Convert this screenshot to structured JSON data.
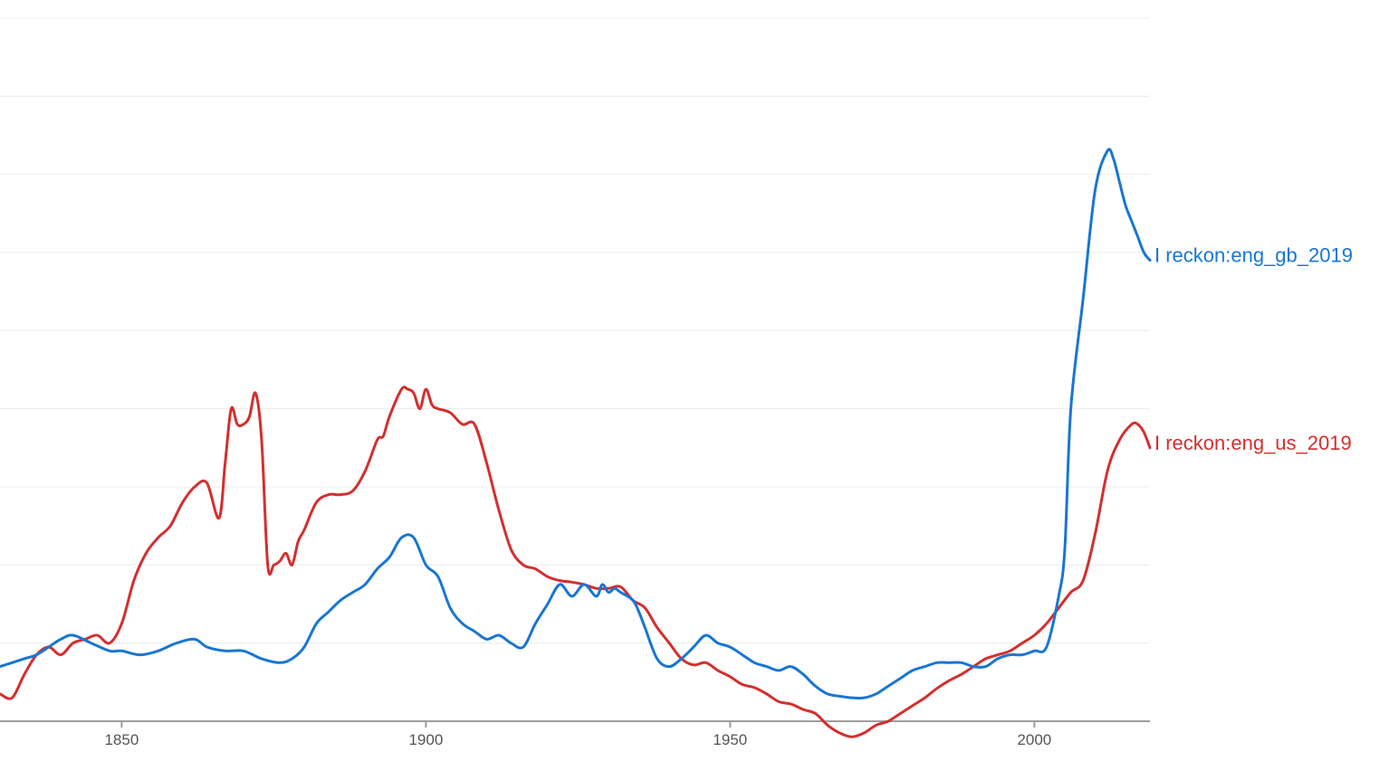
{
  "chart_data": {
    "type": "line",
    "title": "",
    "xlabel": "",
    "ylabel": "",
    "xlim": [
      1830,
      2019
    ],
    "ylim": [
      0,
      9
    ],
    "y_tick_labels_shown": false,
    "grid": "horizontal",
    "legend": "series labels at right end of lines",
    "x_ticks": [
      1850,
      1900,
      1950,
      2000
    ],
    "x_tick_labels": [
      "1850",
      "1900",
      "1950",
      "2000"
    ],
    "series": [
      {
        "name": "I reckon:eng_gb_2019",
        "color": "#1976d2",
        "x": [
          1830,
          1832,
          1834,
          1836,
          1838,
          1840,
          1842,
          1845,
          1848,
          1850,
          1853,
          1856,
          1859,
          1862,
          1864,
          1867,
          1870,
          1873,
          1876,
          1878,
          1880,
          1882,
          1884,
          1886,
          1888,
          1890,
          1892,
          1894,
          1896,
          1898,
          1900,
          1902,
          1904,
          1906,
          1908,
          1910,
          1912,
          1914,
          1916,
          1918,
          1920,
          1922,
          1924,
          1926,
          1928,
          1929,
          1930,
          1931,
          1932,
          1934,
          1935,
          1936,
          1938,
          1940,
          1942,
          1944,
          1946,
          1948,
          1950,
          1952,
          1954,
          1956,
          1958,
          1960,
          1962,
          1964,
          1966,
          1968,
          1970,
          1972,
          1974,
          1976,
          1978,
          1980,
          1982,
          1984,
          1986,
          1988,
          1990,
          1992,
          1994,
          1996,
          1998,
          2000,
          2002,
          2004,
          2005,
          2006,
          2008,
          2010,
          2012,
          2013,
          2014,
          2015,
          2016,
          2017,
          2018,
          2019
        ],
        "values": [
          0.7,
          0.75,
          0.8,
          0.85,
          0.95,
          1.05,
          1.1,
          1.0,
          0.9,
          0.9,
          0.85,
          0.9,
          1.0,
          1.05,
          0.95,
          0.9,
          0.9,
          0.8,
          0.75,
          0.8,
          0.95,
          1.25,
          1.4,
          1.55,
          1.65,
          1.75,
          1.95,
          2.1,
          2.35,
          2.35,
          2.0,
          1.85,
          1.45,
          1.25,
          1.15,
          1.05,
          1.1,
          1.0,
          0.95,
          1.25,
          1.5,
          1.75,
          1.6,
          1.75,
          1.6,
          1.75,
          1.65,
          1.7,
          1.65,
          1.55,
          1.4,
          1.2,
          0.8,
          0.7,
          0.8,
          0.95,
          1.1,
          1.0,
          0.95,
          0.85,
          0.75,
          0.7,
          0.65,
          0.7,
          0.6,
          0.45,
          0.35,
          0.32,
          0.3,
          0.3,
          0.35,
          0.45,
          0.55,
          0.65,
          0.7,
          0.75,
          0.75,
          0.75,
          0.7,
          0.7,
          0.8,
          0.85,
          0.85,
          0.9,
          0.95,
          1.6,
          2.2,
          4.0,
          5.4,
          6.8,
          7.3,
          7.2,
          6.9,
          6.6,
          6.4,
          6.2,
          6.0,
          5.9
        ]
      },
      {
        "name": "I reckon:eng_us_2019",
        "color": "#d32f2f",
        "x": [
          1830,
          1832,
          1834,
          1836,
          1838,
          1840,
          1842,
          1844,
          1846,
          1848,
          1850,
          1852,
          1854,
          1856,
          1858,
          1860,
          1862,
          1864,
          1866,
          1867,
          1868,
          1869,
          1870,
          1871,
          1872,
          1873,
          1874,
          1875,
          1876,
          1877,
          1878,
          1879,
          1880,
          1882,
          1884,
          1886,
          1888,
          1890,
          1892,
          1893,
          1894,
          1896,
          1897,
          1898,
          1899,
          1900,
          1901,
          1902,
          1904,
          1906,
          1908,
          1910,
          1912,
          1914,
          1916,
          1918,
          1920,
          1922,
          1924,
          1926,
          1928,
          1930,
          1932,
          1934,
          1936,
          1938,
          1940,
          1942,
          1944,
          1946,
          1948,
          1950,
          1952,
          1954,
          1956,
          1958,
          1960,
          1962,
          1964,
          1966,
          1968,
          1970,
          1972,
          1974,
          1976,
          1978,
          1980,
          1982,
          1984,
          1986,
          1988,
          1990,
          1992,
          1994,
          1996,
          1998,
          2000,
          2002,
          2004,
          2006,
          2008,
          2010,
          2012,
          2014,
          2016,
          2017,
          2018,
          2019
        ],
        "values": [
          0.35,
          0.3,
          0.6,
          0.85,
          0.95,
          0.85,
          1.0,
          1.05,
          1.1,
          1.0,
          1.25,
          1.8,
          2.15,
          2.35,
          2.5,
          2.8,
          3.0,
          3.05,
          2.6,
          3.3,
          4.0,
          3.8,
          3.8,
          3.9,
          4.2,
          3.6,
          2.0,
          2.0,
          2.05,
          2.15,
          2.0,
          2.3,
          2.45,
          2.8,
          2.9,
          2.9,
          2.95,
          3.2,
          3.6,
          3.65,
          3.9,
          4.25,
          4.25,
          4.2,
          4.0,
          4.25,
          4.05,
          4.0,
          3.95,
          3.8,
          3.8,
          3.3,
          2.7,
          2.2,
          2.0,
          1.95,
          1.85,
          1.8,
          1.78,
          1.75,
          1.7,
          1.7,
          1.72,
          1.55,
          1.45,
          1.2,
          1.0,
          0.8,
          0.72,
          0.75,
          0.65,
          0.57,
          0.47,
          0.43,
          0.35,
          0.25,
          0.22,
          0.15,
          0.1,
          -0.05,
          -0.15,
          -0.2,
          -0.15,
          -0.05,
          0.0,
          0.1,
          0.2,
          0.3,
          0.42,
          0.52,
          0.6,
          0.7,
          0.8,
          0.85,
          0.9,
          1.0,
          1.1,
          1.25,
          1.45,
          1.65,
          1.8,
          2.4,
          3.2,
          3.6,
          3.8,
          3.8,
          3.7,
          3.5
        ]
      }
    ]
  }
}
